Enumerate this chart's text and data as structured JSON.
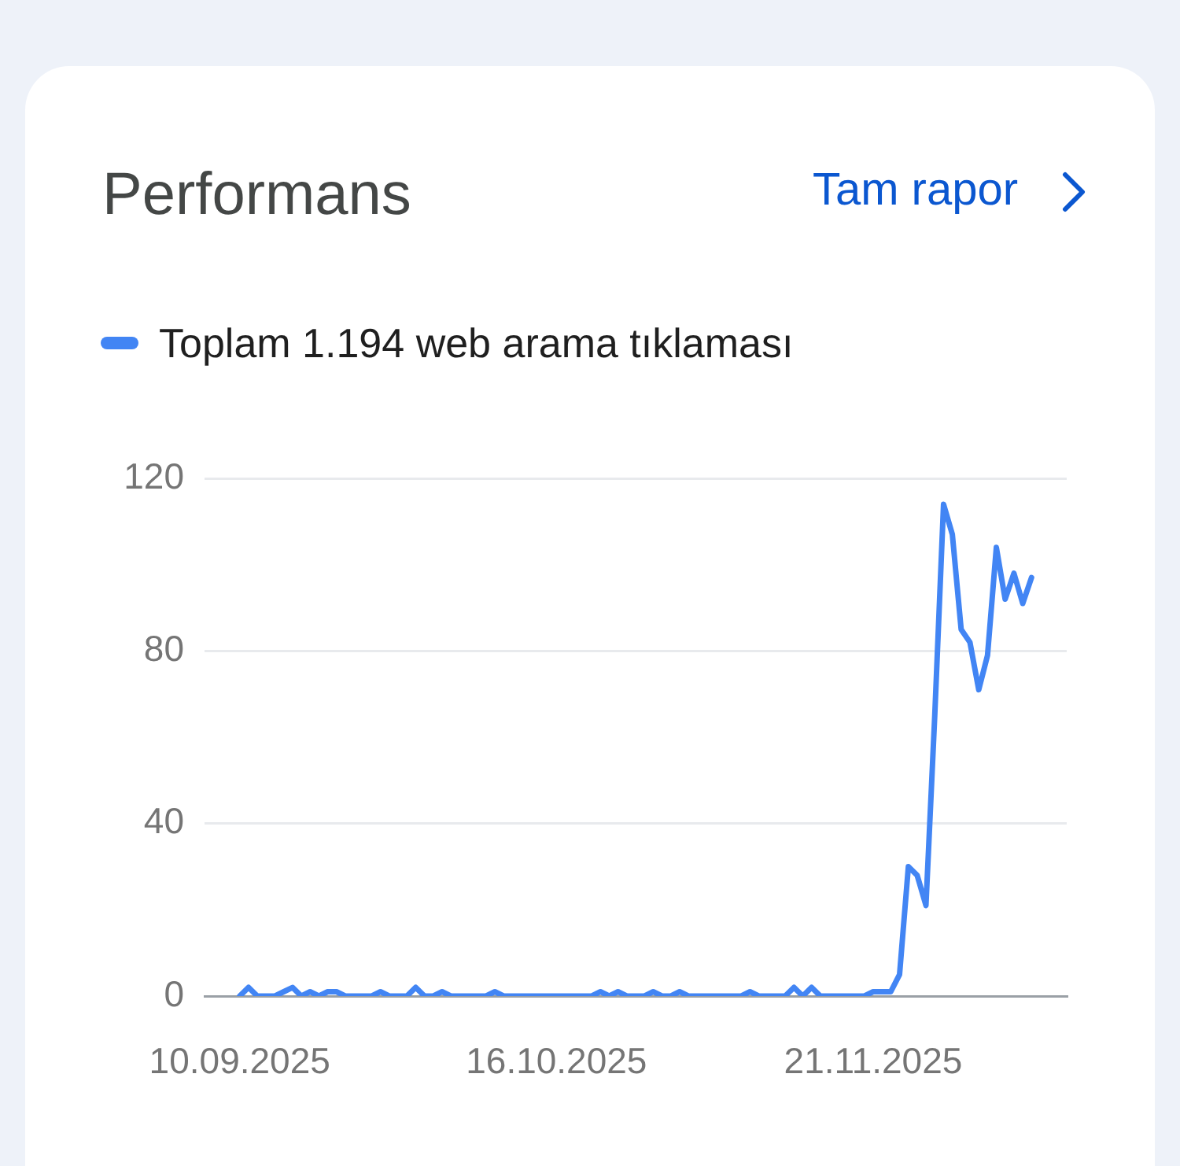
{
  "chart_data": {
    "type": "line",
    "title": "Performans",
    "annotations": [
      "Tam rapor"
    ],
    "legend": "top left",
    "grid": "y",
    "x": [
      "2025-09-10",
      "2025-09-11",
      "2025-09-12",
      "2025-09-13",
      "2025-09-14",
      "2025-09-15",
      "2025-09-16",
      "2025-09-17",
      "2025-09-18",
      "2025-09-19",
      "2025-09-20",
      "2025-09-21",
      "2025-09-22",
      "2025-09-23",
      "2025-09-24",
      "2025-09-25",
      "2025-09-26",
      "2025-09-27",
      "2025-09-28",
      "2025-09-29",
      "2025-09-30",
      "2025-10-01",
      "2025-10-02",
      "2025-10-03",
      "2025-10-04",
      "2025-10-05",
      "2025-10-06",
      "2025-10-07",
      "2025-10-08",
      "2025-10-09",
      "2025-10-10",
      "2025-10-11",
      "2025-10-12",
      "2025-10-13",
      "2025-10-14",
      "2025-10-15",
      "2025-10-16",
      "2025-10-17",
      "2025-10-18",
      "2025-10-19",
      "2025-10-20",
      "2025-10-21",
      "2025-10-22",
      "2025-10-23",
      "2025-10-24",
      "2025-10-25",
      "2025-10-26",
      "2025-10-27",
      "2025-10-28",
      "2025-10-29",
      "2025-10-30",
      "2025-10-31",
      "2025-11-01",
      "2025-11-02",
      "2025-11-03",
      "2025-11-04",
      "2025-11-05",
      "2025-11-06",
      "2025-11-07",
      "2025-11-08",
      "2025-11-09",
      "2025-11-10",
      "2025-11-11",
      "2025-11-12",
      "2025-11-13",
      "2025-11-14",
      "2025-11-15",
      "2025-11-16",
      "2025-11-17",
      "2025-11-18",
      "2025-11-19",
      "2025-11-20",
      "2025-11-21",
      "2025-11-22",
      "2025-11-23",
      "2025-11-24",
      "2025-11-25",
      "2025-11-26",
      "2025-11-27",
      "2025-11-28",
      "2025-11-29",
      "2025-11-30",
      "2025-12-01",
      "2025-12-02",
      "2025-12-03",
      "2025-12-04",
      "2025-12-05",
      "2025-12-06",
      "2025-12-07",
      "2025-12-08",
      "2025-12-09"
    ],
    "series": [
      {
        "name": "Toplam 1.194 web arama tıklaması",
        "color": "#4285f4",
        "values": [
          0,
          2,
          0,
          0,
          0,
          1,
          2,
          0,
          1,
          0,
          1,
          1,
          0,
          0,
          0,
          0,
          1,
          0,
          0,
          0,
          2,
          0,
          0,
          1,
          0,
          0,
          0,
          0,
          0,
          1,
          0,
          0,
          0,
          0,
          0,
          0,
          0,
          0,
          0,
          0,
          0,
          1,
          0,
          1,
          0,
          0,
          0,
          1,
          0,
          0,
          1,
          0,
          0,
          0,
          0,
          0,
          0,
          0,
          1,
          0,
          0,
          0,
          0,
          2,
          0,
          2,
          0,
          0,
          0,
          0,
          0,
          0,
          1,
          1,
          1,
          5,
          30,
          28,
          21,
          65,
          114,
          107,
          85,
          82,
          71,
          79,
          104,
          92,
          98,
          91,
          97
        ]
      }
    ],
    "xlim": [
      "2025-09-06",
      "2025-12-13"
    ],
    "xticks": [
      {
        "value": "2025-09-10",
        "label": "10.09.2025"
      },
      {
        "value": "2025-10-16",
        "label": "16.10.2025"
      },
      {
        "value": "2025-11-21",
        "label": "21.11.2025"
      }
    ],
    "ylim": [
      0,
      120
    ],
    "yticks": [
      0,
      40,
      80,
      120
    ]
  }
}
